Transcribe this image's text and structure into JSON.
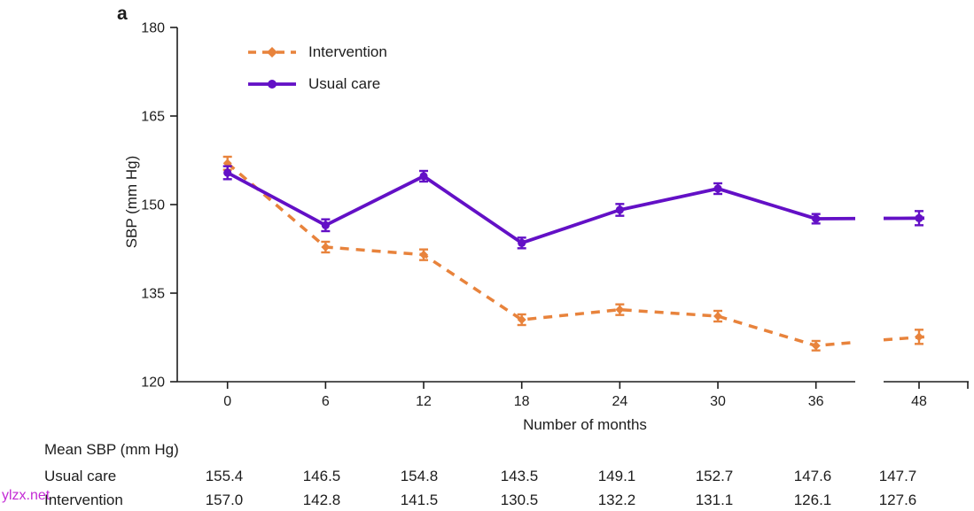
{
  "panel_label": "a",
  "watermark": "ylzx.net",
  "colors": {
    "intervention_orange": "#E8833C",
    "usual_care_purple": "#6310C6",
    "text": "#1d1d1d",
    "watermark_magenta": "#c32bd5"
  },
  "chart_data": {
    "type": "line",
    "title": "",
    "xlabel": "Number of months",
    "ylabel": "SBP (mm Hg)",
    "x": [
      0,
      6,
      12,
      18,
      24,
      30,
      36,
      48
    ],
    "x_tick_labels": [
      "0",
      "6",
      "12",
      "18",
      "24",
      "30",
      "36",
      "48"
    ],
    "y_ticks": [
      120,
      135,
      150,
      165,
      180
    ],
    "y_tick_labels": [
      "120",
      "135",
      "150",
      "165",
      "180"
    ],
    "ylim": [
      120,
      180
    ],
    "axis_break_between": [
      36,
      48
    ],
    "grid": false,
    "legend_position": "top-left-inside",
    "series": [
      {
        "name": "Intervention",
        "color": "#E8833C",
        "line_style": "dashed",
        "marker": "diamond",
        "values": [
          157.0,
          142.8,
          141.5,
          130.5,
          132.2,
          131.1,
          126.1,
          127.6
        ],
        "error": [
          1.1,
          0.9,
          0.9,
          0.9,
          0.9,
          0.9,
          0.8,
          1.2
        ]
      },
      {
        "name": "Usual care",
        "color": "#6310C6",
        "line_style": "solid",
        "marker": "circle",
        "values": [
          155.4,
          146.5,
          154.8,
          143.5,
          149.1,
          152.7,
          147.6,
          147.7
        ],
        "error": [
          1.1,
          1.0,
          0.9,
          0.9,
          1.0,
          0.9,
          0.8,
          1.2
        ]
      }
    ]
  },
  "table": {
    "header": "Mean SBP (mm Hg)",
    "rows": [
      {
        "label": "Usual care",
        "values": [
          "155.4",
          "146.5",
          "154.8",
          "143.5",
          "149.1",
          "152.7",
          "147.6",
          "147.7"
        ]
      },
      {
        "label": "Intervention",
        "values": [
          "157.0",
          "142.8",
          "141.5",
          "130.5",
          "132.2",
          "131.1",
          "126.1",
          "127.6"
        ]
      }
    ]
  }
}
